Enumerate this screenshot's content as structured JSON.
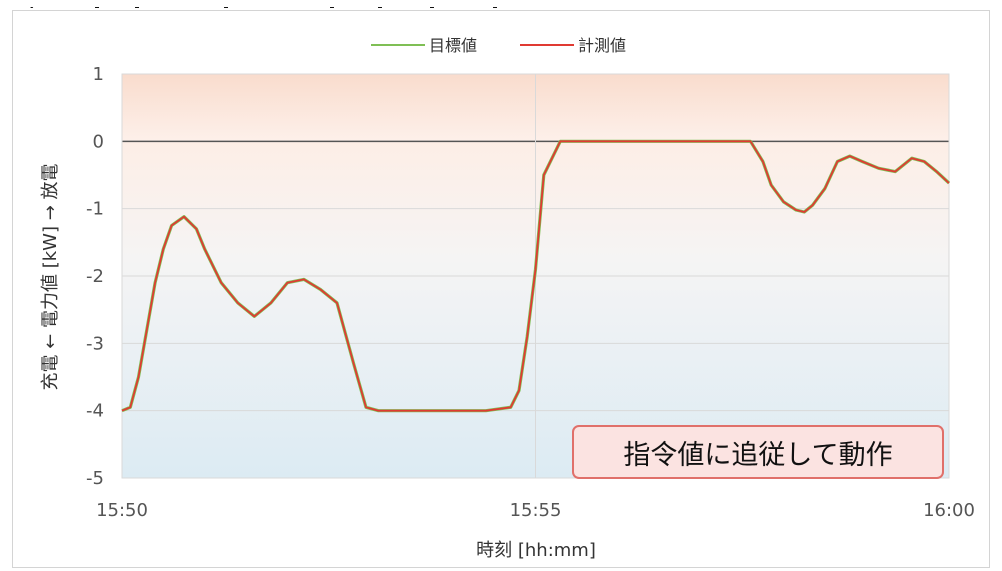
{
  "chart_data": {
    "type": "line",
    "legend": {
      "position": "top",
      "entries": [
        "目標値",
        "計測値"
      ]
    },
    "xlabel": "時刻 [hh:mm]",
    "ylabel": "充電 ← 電力値 [kW] → 放電",
    "ylim": [
      -5,
      1
    ],
    "xlim": [
      "15:50",
      "16:00"
    ],
    "x_tick_labels": [
      "15:50",
      "15:55",
      "16:00"
    ],
    "y_tick_labels": [
      "1",
      "0",
      "-1",
      "-2",
      "-3",
      "-4",
      "-5"
    ],
    "grid": true,
    "x_unit": "minutes from 15:50",
    "series": [
      {
        "name": "目標値",
        "color": "#7fbf55",
        "x": [
          0,
          0.1,
          0.2,
          0.3,
          0.4,
          0.5,
          0.6,
          0.75,
          0.9,
          1.0,
          1.2,
          1.4,
          1.6,
          1.8,
          2.0,
          2.2,
          2.4,
          2.6,
          2.8,
          2.95,
          3.1,
          3.3,
          3.6,
          4.0,
          4.4,
          4.7,
          4.8,
          4.9,
          5.0,
          5.1,
          5.3,
          6.0,
          7.0,
          7.6,
          7.75,
          7.85,
          8.0,
          8.15,
          8.25,
          8.35,
          8.5,
          8.65,
          8.8,
          8.95,
          9.15,
          9.35,
          9.55,
          9.7,
          9.85,
          10.0
        ],
        "y": [
          -4.0,
          -3.95,
          -3.5,
          -2.8,
          -2.1,
          -1.6,
          -1.25,
          -1.12,
          -1.3,
          -1.6,
          -2.1,
          -2.4,
          -2.6,
          -2.4,
          -2.1,
          -2.05,
          -2.2,
          -2.4,
          -3.3,
          -3.95,
          -4.0,
          -4.0,
          -4.0,
          -4.0,
          -4.0,
          -3.95,
          -3.7,
          -2.9,
          -1.9,
          -0.5,
          0,
          0,
          0,
          0,
          -0.3,
          -0.65,
          -0.9,
          -1.02,
          -1.05,
          -0.95,
          -0.7,
          -0.3,
          -0.22,
          -0.3,
          -0.4,
          -0.45,
          -0.25,
          -0.3,
          -0.45,
          -0.62
        ]
      },
      {
        "name": "計測値",
        "color": "#e03a33",
        "x": [
          0,
          0.1,
          0.2,
          0.3,
          0.4,
          0.5,
          0.6,
          0.75,
          0.9,
          1.0,
          1.2,
          1.4,
          1.6,
          1.8,
          2.0,
          2.2,
          2.4,
          2.6,
          2.8,
          2.95,
          3.1,
          3.3,
          3.6,
          4.0,
          4.4,
          4.7,
          4.8,
          4.9,
          5.0,
          5.1,
          5.3,
          6.0,
          7.0,
          7.6,
          7.75,
          7.85,
          8.0,
          8.15,
          8.25,
          8.35,
          8.5,
          8.65,
          8.8,
          8.95,
          9.15,
          9.35,
          9.55,
          9.7,
          9.85,
          10.0
        ],
        "y": [
          -4.0,
          -3.95,
          -3.5,
          -2.8,
          -2.1,
          -1.6,
          -1.25,
          -1.12,
          -1.3,
          -1.6,
          -2.1,
          -2.4,
          -2.6,
          -2.4,
          -2.1,
          -2.05,
          -2.2,
          -2.4,
          -3.3,
          -3.95,
          -4.0,
          -4.0,
          -4.0,
          -4.0,
          -4.0,
          -3.95,
          -3.7,
          -2.9,
          -1.9,
          -0.5,
          0,
          0,
          0,
          0,
          -0.3,
          -0.65,
          -0.9,
          -1.02,
          -1.05,
          -0.95,
          -0.7,
          -0.3,
          -0.22,
          -0.3,
          -0.4,
          -0.45,
          -0.25,
          -0.3,
          -0.45,
          -0.62
        ]
      }
    ],
    "annotation": "指令値に追従して動作"
  }
}
